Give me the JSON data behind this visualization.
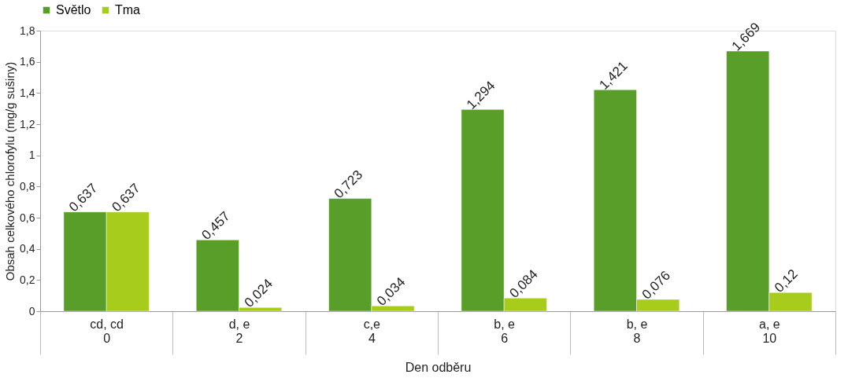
{
  "chart_data": {
    "type": "bar",
    "xlabel": "Den odběru",
    "ylabel": "Obsah celkového chlorofylu (mg/g sušiny)",
    "categories": [
      "cd, cd\n0",
      "d, e\n2",
      "c,e\n4",
      "b, e\n6",
      "b, e\n8",
      "a, e\n10"
    ],
    "series": [
      {
        "name": "Světlo",
        "color": "#5a9e2a",
        "values": [
          0.637,
          0.457,
          0.723,
          1.294,
          1.421,
          1.669
        ],
        "value_labels": [
          "0,637",
          "0,457",
          "0,723",
          "1,294",
          "1,421",
          "1,669"
        ]
      },
      {
        "name": "Tma",
        "color": "#a8cc1c",
        "values": [
          0.637,
          0.024,
          0.034,
          0.084,
          0.076,
          0.12
        ],
        "value_labels": [
          "0,637",
          "0,024",
          "0,034",
          "0,084",
          "0,076",
          "0,12"
        ]
      }
    ],
    "ylim": [
      0,
      1.8
    ],
    "yticks": [
      0,
      {
        "value": 0.2,
        "label": "0,2"
      },
      {
        "value": 0.4,
        "label": "0,4"
      },
      {
        "value": 0.6,
        "label": "0,6"
      },
      {
        "value": 0.8,
        "label": "0,8"
      },
      1,
      {
        "value": 1.2,
        "label": "1,2"
      },
      {
        "value": 1.4,
        "label": "1,4"
      },
      {
        "value": 1.6,
        "label": "1,6"
      },
      {
        "value": 1.8,
        "label": "1,8"
      }
    ],
    "grid": false,
    "legend": "top"
  }
}
